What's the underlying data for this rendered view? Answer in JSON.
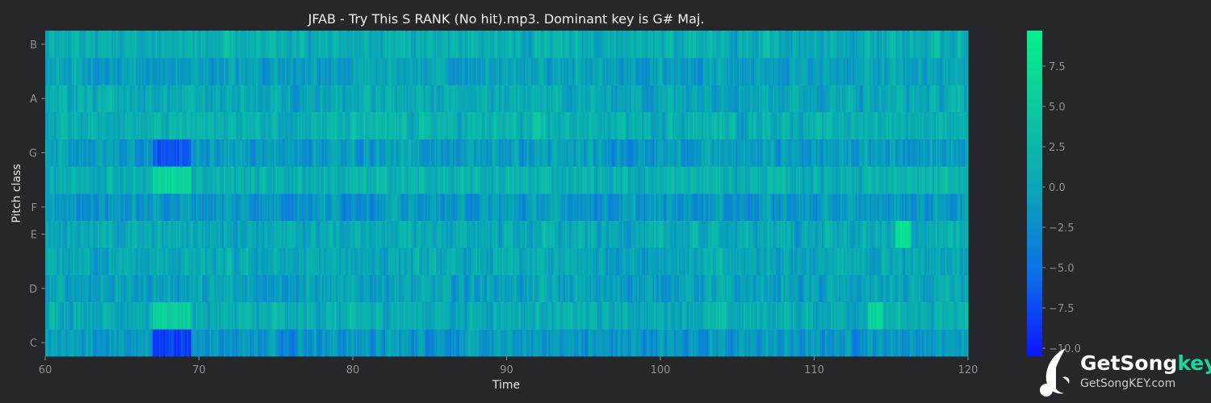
{
  "chart_data": {
    "type": "heatmap",
    "title": "JFAB - Try This S RANK (No hit).mp3. Dominant key is G# Maj.",
    "xlabel": "Time",
    "ylabel": "Pitch class",
    "xlim": [
      60,
      120
    ],
    "x_ticks": [
      60,
      70,
      80,
      90,
      100,
      110,
      120
    ],
    "y_rows": [
      "C",
      "C#",
      "D",
      "D#",
      "E",
      "F",
      "F#",
      "G",
      "G#",
      "A",
      "A#",
      "B"
    ],
    "y_tick_labels": [
      "C",
      "D",
      "E",
      "F",
      "G",
      "A",
      "B"
    ],
    "colorbar": {
      "min": -10.5,
      "max": 9.7,
      "ticks": [
        7.5,
        5.0,
        2.5,
        0.0,
        -2.5,
        -5.0,
        -7.5,
        -10.0
      ],
      "tick_labels": [
        "7.5",
        "5.0",
        "2.5",
        "0.0",
        "−2.5",
        "−5.0",
        "−7.5",
        "−10.0"
      ],
      "colormap": [
        "#0a14ff",
        "#0d6fe8",
        "#0aa3b8",
        "#0fc6a0",
        "#05f08c"
      ]
    },
    "num_frames": 600,
    "row_bias": [
      -1.5,
      1.0,
      -0.5,
      0.2,
      0.5,
      -1.5,
      1.5,
      -1.0,
      1.5,
      0.5,
      -0.5,
      1.0
    ],
    "highlights": [
      {
        "row": "C",
        "from": 67,
        "to": 69.5,
        "value": -8
      },
      {
        "row": "C#",
        "from": 67,
        "to": 69.5,
        "value": 5.5
      },
      {
        "row": "F#",
        "from": 67,
        "to": 69.5,
        "value": 6.5
      },
      {
        "row": "G",
        "from": 67,
        "to": 69.5,
        "value": -7
      },
      {
        "row": "E",
        "from": 115.3,
        "to": 116.3,
        "value": 7.5
      },
      {
        "row": "C#",
        "from": 113.5,
        "to": 114.5,
        "value": 6
      }
    ]
  },
  "logo": {
    "brand_main": "GetSong",
    "brand_accent": "key",
    "url": "GetSongKEY.com",
    "accent_color": "#1bd79f"
  }
}
